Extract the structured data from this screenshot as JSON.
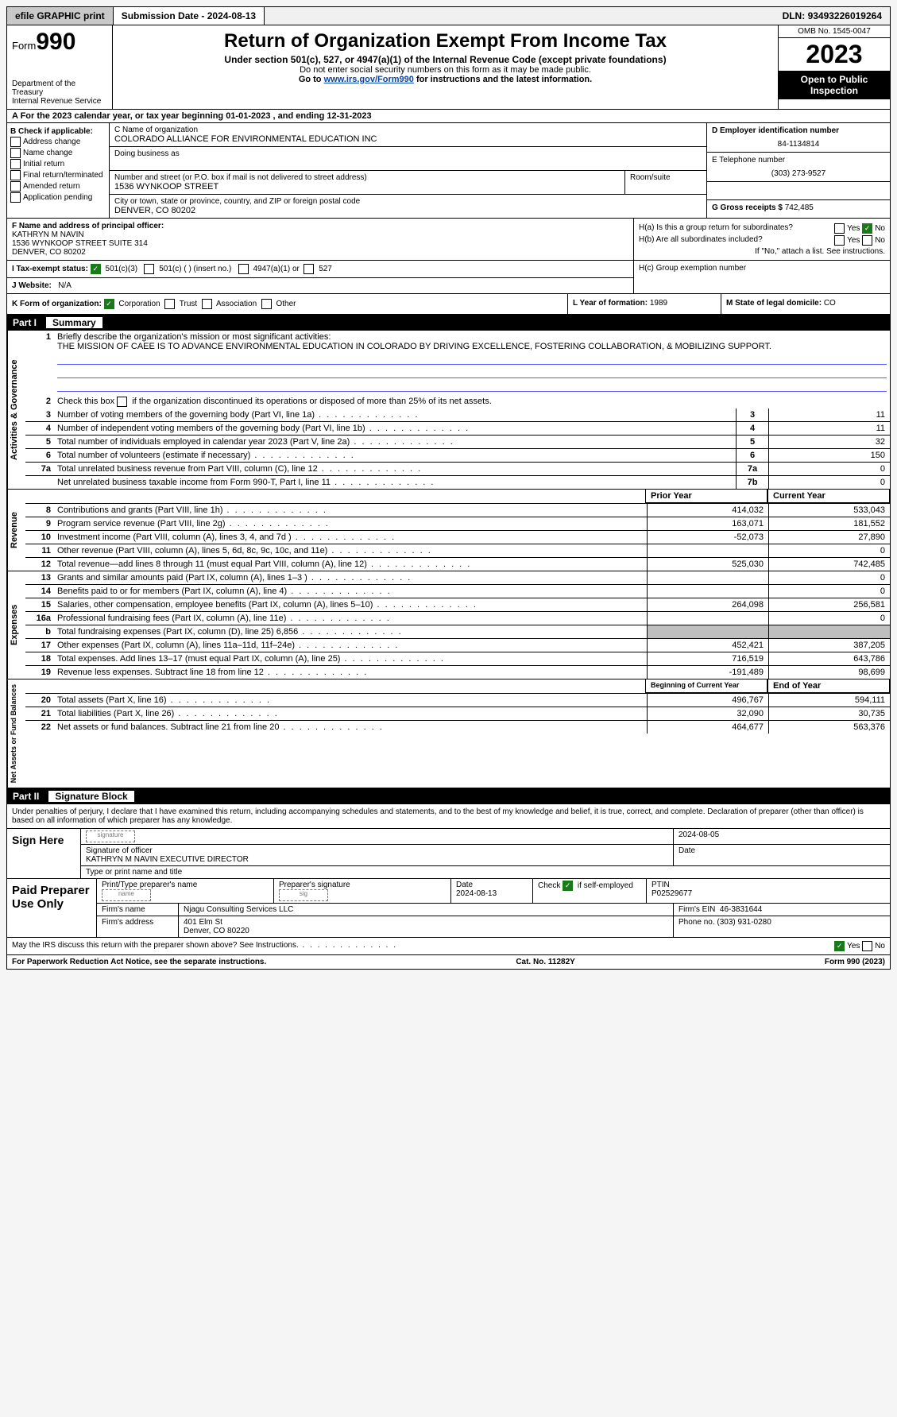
{
  "topbar": {
    "efile": "efile GRAPHIC print",
    "submission_label": "Submission Date - ",
    "submission_date": "2024-08-13",
    "dln_label": "DLN: ",
    "dln": "93493226019264"
  },
  "header": {
    "form_prefix": "Form",
    "form_number": "990",
    "dept": "Department of the Treasury",
    "irs": "Internal Revenue Service",
    "title": "Return of Organization Exempt From Income Tax",
    "sub1": "Under section 501(c), 527, or 4947(a)(1) of the Internal Revenue Code (except private foundations)",
    "sub2": "Do not enter social security numbers on this form as it may be made public.",
    "sub3_prefix": "Go to ",
    "sub3_link": "www.irs.gov/Form990",
    "sub3_suffix": " for instructions and the latest information.",
    "omb": "OMB No. 1545-0047",
    "year": "2023",
    "public": "Open to Public Inspection"
  },
  "row_a": "A  For the 2023 calendar year, or tax year beginning 01-01-2023    , and ending 12-31-2023",
  "sec_b": {
    "title": "B Check if applicable:",
    "items": [
      "Address change",
      "Name change",
      "Initial return",
      "Final return/terminated",
      "Amended return",
      "Application pending"
    ]
  },
  "sec_c": {
    "name_label": "C Name of organization",
    "name": "COLORADO ALLIANCE FOR ENVIRONMENTAL EDUCATION INC",
    "dba_label": "Doing business as",
    "street_label": "Number and street (or P.O. box if mail is not delivered to street address)",
    "room_label": "Room/suite",
    "street": "1536 WYNKOOP STREET",
    "city_label": "City or town, state or province, country, and ZIP or foreign postal code",
    "city": "DENVER, CO  80202"
  },
  "sec_d": {
    "ein_label": "D Employer identification number",
    "ein": "84-1134814",
    "tel_label": "E Telephone number",
    "tel": "(303) 273-9527",
    "gross_label": "G Gross receipts $ ",
    "gross": "742,485"
  },
  "sec_f": {
    "label": "F  Name and address of principal officer:",
    "name": "KATHRYN M NAVIN",
    "addr1": "1536 WYNKOOP STREET SUITE 314",
    "addr2": "DENVER, CO  80202"
  },
  "sec_h": {
    "ha": "H(a)  Is this a group return for subordinates?",
    "hb": "H(b)  Are all subordinates included?",
    "hb_note": "If \"No,\" attach a list. See instructions.",
    "hc": "H(c)  Group exemption number",
    "yes": "Yes",
    "no": "No"
  },
  "sec_i": {
    "label": "I    Tax-exempt status:",
    "o1": "501(c)(3)",
    "o2": "501(c) (  ) (insert no.)",
    "o3": "4947(a)(1) or",
    "o4": "527"
  },
  "sec_j": {
    "label": "J    Website:",
    "val": "N/A"
  },
  "sec_k": {
    "label": "K Form of organization:",
    "opts": [
      "Corporation",
      "Trust",
      "Association",
      "Other"
    ],
    "l_label": "L Year of formation: ",
    "l_val": "1989",
    "m_label": "M State of legal domicile: ",
    "m_val": "CO"
  },
  "part1": {
    "part": "Part I",
    "title": "Summary",
    "q1_label": "Briefly describe the organization's mission or most significant activities:",
    "q1_text": "THE MISSION OF CAEE IS TO ADVANCE ENVIRONMENTAL EDUCATION IN COLORADO BY DRIVING EXCELLENCE, FOSTERING COLLABORATION, & MOBILIZING SUPPORT.",
    "q2": "Check this box     if the organization discontinued its operations or disposed of more than 25% of its net assets.",
    "side_gov": "Activities & Governance",
    "side_rev": "Revenue",
    "side_exp": "Expenses",
    "side_net": "Net Assets or Fund Balances",
    "rows_gov": [
      {
        "n": "3",
        "d": "Number of voting members of the governing body (Part VI, line 1a)",
        "box": "3",
        "v": "11"
      },
      {
        "n": "4",
        "d": "Number of independent voting members of the governing body (Part VI, line 1b)",
        "box": "4",
        "v": "11"
      },
      {
        "n": "5",
        "d": "Total number of individuals employed in calendar year 2023 (Part V, line 2a)",
        "box": "5",
        "v": "32"
      },
      {
        "n": "6",
        "d": "Total number of volunteers (estimate if necessary)",
        "box": "6",
        "v": "150"
      },
      {
        "n": "7a",
        "d": "Total unrelated business revenue from Part VIII, column (C), line 12",
        "box": "7a",
        "v": "0"
      },
      {
        "n": "",
        "d": "Net unrelated business taxable income from Form 990-T, Part I, line 11",
        "box": "7b",
        "v": "0"
      }
    ],
    "hdr_prior": "Prior Year",
    "hdr_curr": "Current Year",
    "rows_rev": [
      {
        "n": "8",
        "d": "Contributions and grants (Part VIII, line 1h)",
        "p": "414,032",
        "c": "533,043"
      },
      {
        "n": "9",
        "d": "Program service revenue (Part VIII, line 2g)",
        "p": "163,071",
        "c": "181,552"
      },
      {
        "n": "10",
        "d": "Investment income (Part VIII, column (A), lines 3, 4, and 7d )",
        "p": "-52,073",
        "c": "27,890"
      },
      {
        "n": "11",
        "d": "Other revenue (Part VIII, column (A), lines 5, 6d, 8c, 9c, 10c, and 11e)",
        "p": "",
        "c": "0"
      },
      {
        "n": "12",
        "d": "Total revenue—add lines 8 through 11 (must equal Part VIII, column (A), line 12)",
        "p": "525,030",
        "c": "742,485"
      }
    ],
    "rows_exp": [
      {
        "n": "13",
        "d": "Grants and similar amounts paid (Part IX, column (A), lines 1–3 )",
        "p": "",
        "c": "0"
      },
      {
        "n": "14",
        "d": "Benefits paid to or for members (Part IX, column (A), line 4)",
        "p": "",
        "c": "0"
      },
      {
        "n": "15",
        "d": "Salaries, other compensation, employee benefits (Part IX, column (A), lines 5–10)",
        "p": "264,098",
        "c": "256,581"
      },
      {
        "n": "16a",
        "d": "Professional fundraising fees (Part IX, column (A), line 11e)",
        "p": "",
        "c": "0"
      },
      {
        "n": "b",
        "d": "Total fundraising expenses (Part IX, column (D), line 25) 6,856",
        "p": "SHADE",
        "c": "SHADE"
      },
      {
        "n": "17",
        "d": "Other expenses (Part IX, column (A), lines 11a–11d, 11f–24e)",
        "p": "452,421",
        "c": "387,205"
      },
      {
        "n": "18",
        "d": "Total expenses. Add lines 13–17 (must equal Part IX, column (A), line 25)",
        "p": "716,519",
        "c": "643,786"
      },
      {
        "n": "19",
        "d": "Revenue less expenses. Subtract line 18 from line 12",
        "p": "-191,489",
        "c": "98,699"
      }
    ],
    "hdr_beg": "Beginning of Current Year",
    "hdr_end": "End of Year",
    "rows_net": [
      {
        "n": "20",
        "d": "Total assets (Part X, line 16)",
        "p": "496,767",
        "c": "594,111"
      },
      {
        "n": "21",
        "d": "Total liabilities (Part X, line 26)",
        "p": "32,090",
        "c": "30,735"
      },
      {
        "n": "22",
        "d": "Net assets or fund balances. Subtract line 21 from line 20",
        "p": "464,677",
        "c": "563,376"
      }
    ]
  },
  "part2": {
    "part": "Part II",
    "title": "Signature Block",
    "decl": "Under penalties of perjury, I declare that I have examined this return, including accompanying schedules and statements, and to the best of my knowledge and belief, it is true, correct, and complete. Declaration of preparer (other than officer) is based on all information of which preparer has any knowledge.",
    "sign_here": "Sign Here",
    "sig_date": "2024-08-05",
    "sig_line1": "Signature of officer",
    "sig_line2": "KATHRYN M NAVIN  EXECUTIVE DIRECTOR",
    "sig_line3": "Type or print name and title",
    "paid": "Paid Preparer Use Only",
    "p_name_label": "Print/Type preparer's name",
    "p_sig_label": "Preparer's signature",
    "p_date_label": "Date",
    "p_date": "2024-08-13",
    "p_check_label": "Check       if self-employed",
    "p_ptin_label": "PTIN",
    "p_ptin": "P02529677",
    "firm_name_label": "Firm's name",
    "firm_name": "Njagu Consulting Services LLC",
    "firm_ein_label": "Firm's EIN",
    "firm_ein": "46-3831644",
    "firm_addr_label": "Firm's address",
    "firm_addr1": "401 Elm St",
    "firm_addr2": "Denver, CO  80220",
    "phone_label": "Phone no.",
    "phone": "(303) 931-0280",
    "discuss": "May the IRS discuss this return with the preparer shown above? See Instructions."
  },
  "footer": {
    "left": "For Paperwork Reduction Act Notice, see the separate instructions.",
    "center": "Cat. No. 11282Y",
    "right": "Form 990 (2023)"
  }
}
